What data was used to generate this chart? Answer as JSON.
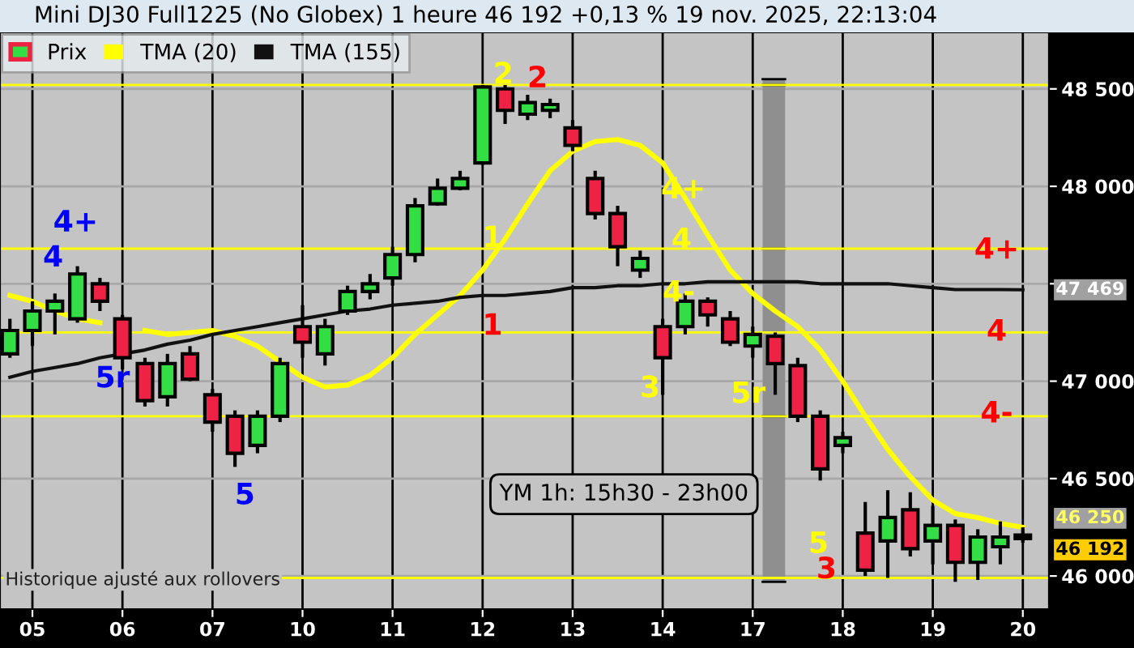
{
  "chart_data": {
    "type": "candlestick",
    "title": "Mini DJ30 Full1225 (No Globex) 1 heure 46 192 +0,13 % 19 nov. 2025, 22:13:04",
    "categories": [
      null,
      "05",
      null,
      null,
      null,
      "06",
      null,
      null,
      null,
      "07",
      null,
      null,
      null,
      "10",
      null,
      null,
      null,
      "11",
      null,
      null,
      null,
      "12",
      null,
      null,
      null,
      "13",
      null,
      null,
      null,
      "14",
      null,
      null,
      null,
      "17",
      null,
      null,
      null,
      "18",
      null,
      null,
      null,
      "19",
      null,
      null,
      null,
      "20"
    ],
    "series": [
      {
        "name": "Prix",
        "colors": [
          "#33dd44",
          "#33dd44",
          "#33dd44",
          "#33dd44",
          "#ee2244",
          "#ee2244",
          "#ee2244",
          "#33dd44",
          "#ee2244",
          "#ee2244",
          "#ee2244",
          "#33dd44",
          "#33dd44",
          "#ee2244",
          "#33dd44",
          "#33dd44",
          "#33dd44",
          "#33dd44",
          "#33dd44",
          "#33dd44",
          "#33dd44",
          "#33dd44",
          "#ee2244",
          "#33dd44",
          "#33dd44",
          "#ee2244",
          "#ee2244",
          "#ee2244",
          "#33dd44",
          "#ee2244",
          "#33dd44",
          "#ee2244",
          "#ee2244",
          "#33dd44",
          "#ee2244",
          "#ee2244",
          "#ee2244",
          "#33dd44",
          "#ee2244",
          "#33dd44",
          "#ee2244",
          "#33dd44",
          "#ee2244",
          "#33dd44",
          "#33dd44",
          "#ee2244"
        ],
        "ohlc": [
          [
            47140,
            47320,
            47120,
            47260
          ],
          [
            47260,
            47410,
            47180,
            47360
          ],
          [
            47360,
            47450,
            47240,
            47410
          ],
          [
            47320,
            47590,
            47300,
            47550
          ],
          [
            47500,
            47530,
            47360,
            47410
          ],
          [
            47320,
            47340,
            47060,
            47120
          ],
          [
            47090,
            47120,
            46870,
            46900
          ],
          [
            46920,
            47140,
            46870,
            47090
          ],
          [
            47140,
            47180,
            47000,
            47010
          ],
          [
            46930,
            46960,
            46740,
            46790
          ],
          [
            46820,
            46850,
            46560,
            46630
          ],
          [
            46670,
            46850,
            46630,
            46820
          ],
          [
            46820,
            47120,
            46790,
            47090
          ],
          [
            47280,
            47390,
            47120,
            47200
          ],
          [
            47140,
            47320,
            47080,
            47280
          ],
          [
            47360,
            47490,
            47340,
            47460
          ],
          [
            47460,
            47550,
            47420,
            47500
          ],
          [
            47530,
            47690,
            47490,
            47650
          ],
          [
            47650,
            47940,
            47610,
            47900
          ],
          [
            47910,
            48040,
            47900,
            47990
          ],
          [
            47990,
            48080,
            47980,
            48040
          ],
          [
            48120,
            48520,
            48110,
            48510
          ],
          [
            48500,
            48520,
            48320,
            48390
          ],
          [
            48370,
            48470,
            48340,
            48430
          ],
          [
            48390,
            48450,
            48350,
            48420
          ],
          [
            48300,
            48340,
            48180,
            48210
          ],
          [
            48040,
            48080,
            47830,
            47860
          ],
          [
            47860,
            47900,
            47590,
            47690
          ],
          [
            47570,
            47670,
            47530,
            47630
          ],
          [
            47280,
            47320,
            46930,
            47120
          ],
          [
            47280,
            47450,
            47240,
            47410
          ],
          [
            47410,
            47430,
            47280,
            47340
          ],
          [
            47320,
            47360,
            47180,
            47200
          ],
          [
            47180,
            47280,
            47120,
            47240
          ],
          [
            47230,
            47250,
            46930,
            47090
          ],
          [
            47080,
            47120,
            46790,
            46820
          ],
          [
            46820,
            46850,
            46490,
            46550
          ],
          [
            46670,
            46740,
            46630,
            46710
          ],
          [
            46220,
            46380,
            46000,
            46030
          ],
          [
            46180,
            46440,
            45990,
            46300
          ],
          [
            46340,
            46430,
            46100,
            46140
          ],
          [
            46180,
            46360,
            46060,
            46260
          ],
          [
            46260,
            46290,
            45970,
            46070
          ],
          [
            46070,
            46240,
            45980,
            46200
          ],
          [
            46150,
            46280,
            46060,
            46200
          ],
          [
            46210,
            46250,
            46170,
            46192
          ]
        ]
      },
      {
        "type": "line",
        "name": "TMA (20)",
        "color": "#ffff00",
        "values": [
          47440,
          47410,
          47360,
          47320,
          47300,
          null,
          47260,
          47240,
          47250,
          47260,
          47230,
          47180,
          47100,
          47020,
          46970,
          46980,
          47030,
          47120,
          47240,
          47340,
          47440,
          47570,
          47730,
          47910,
          48080,
          48180,
          48230,
          48240,
          48210,
          48120,
          47940,
          47750,
          47570,
          47450,
          47360,
          47280,
          47160,
          47000,
          46820,
          46650,
          46510,
          46390,
          46320,
          46300,
          46270,
          46250
        ]
      },
      {
        "type": "line",
        "name": "TMA (155)",
        "color": "#111111",
        "values": [
          47020,
          47050,
          47070,
          47090,
          47120,
          47140,
          47160,
          47190,
          47210,
          47240,
          47260,
          47280,
          47300,
          47320,
          47340,
          47360,
          47370,
          47390,
          47400,
          47410,
          47430,
          47440,
          47440,
          47450,
          47460,
          47480,
          47480,
          47490,
          47490,
          47500,
          47500,
          47510,
          47510,
          47510,
          47510,
          47510,
          47500,
          47500,
          47500,
          47500,
          47490,
          47480,
          47470,
          47470,
          47470,
          47469
        ]
      }
    ],
    "ylim": [
      45830,
      48790
    ],
    "yticks": [
      {
        "value": 46000,
        "label": "46 000"
      },
      {
        "value": 46500,
        "label": "46 500"
      },
      {
        "value": 47000,
        "label": "47 000"
      },
      {
        "value": 47500,
        "label": null
      },
      {
        "value": 48000,
        "label": "48 000"
      },
      {
        "value": 48500,
        "label": "48 500"
      }
    ],
    "grid": true,
    "legend": "top left",
    "ref_lines": [
      {
        "axis": "y",
        "value": 48520,
        "color": "#ffff00"
      },
      {
        "axis": "y",
        "value": 47680,
        "color": "#ffff00"
      },
      {
        "axis": "y",
        "value": 47250,
        "color": "#ffff00"
      },
      {
        "axis": "y",
        "value": 46820,
        "color": "#ffff00"
      },
      {
        "axis": "y",
        "value": 45990,
        "color": "#ffff00"
      }
    ],
    "annotations": [
      "4+",
      "4",
      "5r",
      "5",
      "1",
      "1",
      "2",
      "2",
      "4+",
      "4",
      "4-",
      "3",
      "5r",
      "5",
      "3",
      "4+",
      "4",
      "4-",
      "YM 1h: 15h30 - 23h00",
      "47 469",
      "46 250",
      "46 192",
      "Historique ajusté aux rollovers"
    ]
  }
}
